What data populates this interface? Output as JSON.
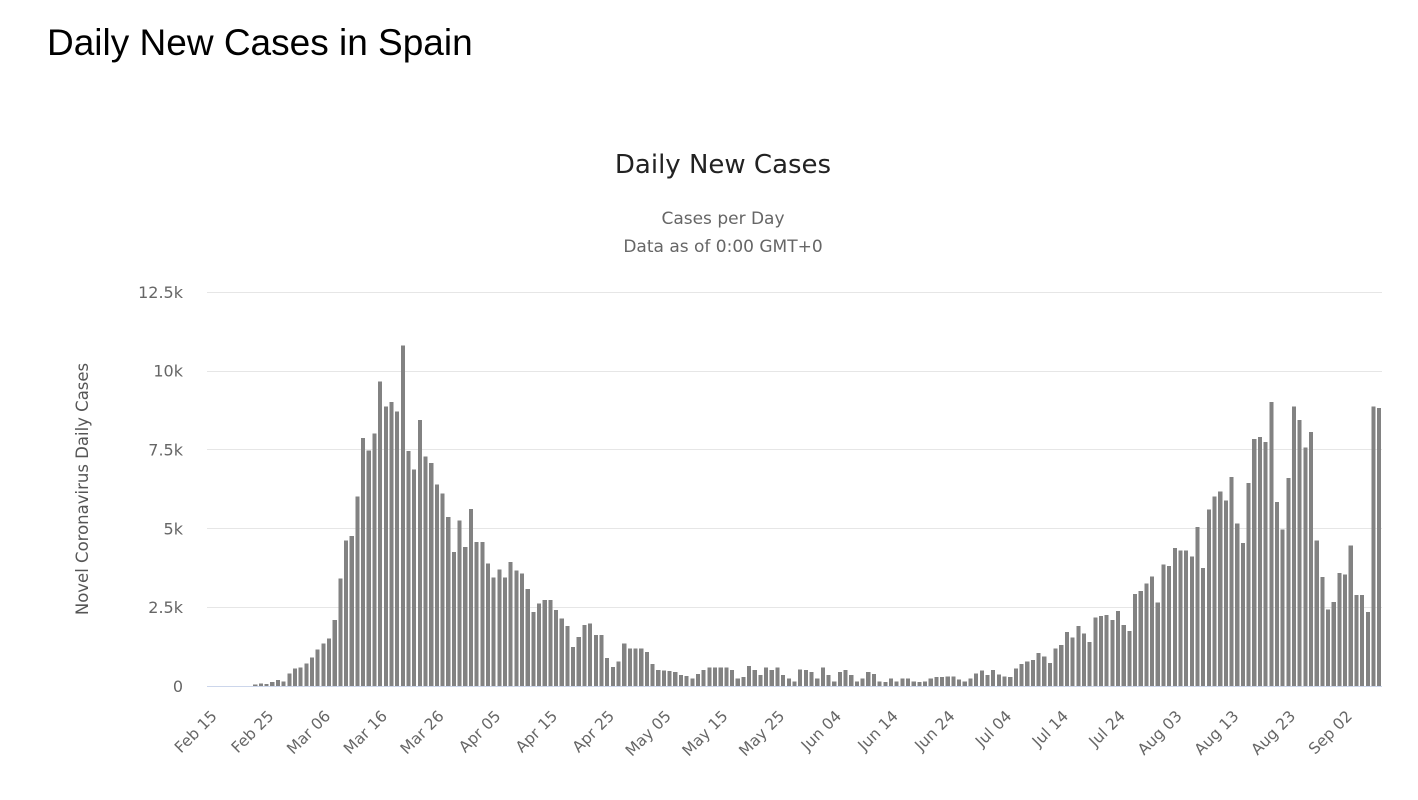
{
  "page": {
    "title": "Daily New Cases in Spain"
  },
  "chart_data": {
    "type": "bar",
    "title": "Daily New Cases",
    "subtitle": "Cases per Day",
    "subtitle2": "Data as of 0:00 GMT+0",
    "ylabel": "Novel Coronavirus Daily Cases",
    "xlabel": "",
    "ylim": [
      0,
      12500
    ],
    "grid": true,
    "legend": "none",
    "bar_color": "#828282",
    "grid_color": "#e6e6e6",
    "axis_line_color": "#ccd6eb",
    "label_color": "#666666",
    "ytick_values": [
      0,
      2500,
      5000,
      7500,
      10000,
      12500
    ],
    "ytick_labels": [
      "0",
      "2.5k",
      "5k",
      "7.5k",
      "10k",
      "12.5k"
    ],
    "xtick_every_days": 10,
    "xtick_labels": [
      "Feb 15",
      "Feb 25",
      "Mar 06",
      "Mar 16",
      "Mar 26",
      "Apr 05",
      "Apr 15",
      "Apr 25",
      "May 05",
      "May 15",
      "May 25",
      "Jun 04",
      "Jun 14",
      "Jun 24",
      "Jul 04",
      "Jul 14",
      "Jul 24",
      "Aug 03",
      "Aug 13",
      "Aug 23",
      "Sep 02"
    ],
    "x_range": [
      "Feb 15",
      "Sep 08"
    ],
    "categories": [
      "Feb 15",
      "Feb 16",
      "Feb 17",
      "Feb 18",
      "Feb 19",
      "Feb 20",
      "Feb 21",
      "Feb 22",
      "Feb 23",
      "Feb 24",
      "Feb 25",
      "Feb 26",
      "Feb 27",
      "Feb 28",
      "Feb 29",
      "Mar 01",
      "Mar 02",
      "Mar 03",
      "Mar 04",
      "Mar 05",
      "Mar 06",
      "Mar 07",
      "Mar 08",
      "Mar 09",
      "Mar 10",
      "Mar 11",
      "Mar 12",
      "Mar 13",
      "Mar 14",
      "Mar 15",
      "Mar 16",
      "Mar 17",
      "Mar 18",
      "Mar 19",
      "Mar 20",
      "Mar 21",
      "Mar 22",
      "Mar 23",
      "Mar 24",
      "Mar 25",
      "Mar 26",
      "Mar 27",
      "Mar 28",
      "Mar 29",
      "Mar 30",
      "Mar 31",
      "Apr 01",
      "Apr 02",
      "Apr 03",
      "Apr 04",
      "Apr 05",
      "Apr 06",
      "Apr 07",
      "Apr 08",
      "Apr 09",
      "Apr 10",
      "Apr 11",
      "Apr 12",
      "Apr 13",
      "Apr 14",
      "Apr 15",
      "Apr 16",
      "Apr 17",
      "Apr 18",
      "Apr 19",
      "Apr 20",
      "Apr 21",
      "Apr 22",
      "Apr 23",
      "Apr 24",
      "Apr 25",
      "Apr 26",
      "Apr 27",
      "Apr 28",
      "Apr 29",
      "Apr 30",
      "May 01",
      "May 02",
      "May 03",
      "May 04",
      "May 05",
      "May 06",
      "May 07",
      "May 08",
      "May 09",
      "May 10",
      "May 11",
      "May 12",
      "May 13",
      "May 14",
      "May 15",
      "May 16",
      "May 17",
      "May 18",
      "May 19",
      "May 20",
      "May 21",
      "May 22",
      "May 23",
      "May 24",
      "May 25",
      "May 26",
      "May 27",
      "May 28",
      "May 29",
      "May 30",
      "May 31",
      "Jun 01",
      "Jun 02",
      "Jun 03",
      "Jun 04",
      "Jun 05",
      "Jun 06",
      "Jun 07",
      "Jun 08",
      "Jun 09",
      "Jun 10",
      "Jun 11",
      "Jun 12",
      "Jun 13",
      "Jun 14",
      "Jun 15",
      "Jun 16",
      "Jun 17",
      "Jun 18",
      "Jun 19",
      "Jun 20",
      "Jun 21",
      "Jun 22",
      "Jun 23",
      "Jun 24",
      "Jun 25",
      "Jun 26",
      "Jun 27",
      "Jun 28",
      "Jun 29",
      "Jun 30",
      "Jul 01",
      "Jul 02",
      "Jul 03",
      "Jul 04",
      "Jul 05",
      "Jul 06",
      "Jul 07",
      "Jul 08",
      "Jul 09",
      "Jul 10",
      "Jul 11",
      "Jul 12",
      "Jul 13",
      "Jul 14",
      "Jul 15",
      "Jul 16",
      "Jul 17",
      "Jul 18",
      "Jul 19",
      "Jul 20",
      "Jul 21",
      "Jul 22",
      "Jul 23",
      "Jul 24",
      "Jul 25",
      "Jul 26",
      "Jul 27",
      "Jul 28",
      "Jul 29",
      "Jul 30",
      "Jul 31",
      "Aug 01",
      "Aug 02",
      "Aug 03",
      "Aug 04",
      "Aug 05",
      "Aug 06",
      "Aug 07",
      "Aug 08",
      "Aug 09",
      "Aug 10",
      "Aug 11",
      "Aug 12",
      "Aug 13",
      "Aug 14",
      "Aug 15",
      "Aug 16",
      "Aug 17",
      "Aug 18",
      "Aug 19",
      "Aug 20",
      "Aug 21",
      "Aug 22",
      "Aug 23",
      "Aug 24",
      "Aug 25",
      "Aug 26",
      "Aug 27",
      "Aug 28",
      "Aug 29",
      "Aug 30",
      "Aug 31",
      "Sep 01",
      "Sep 02",
      "Sep 03",
      "Sep 04",
      "Sep 05",
      "Sep 06",
      "Sep 07",
      "Sep 08"
    ],
    "values": [
      0,
      0,
      0,
      0,
      0,
      0,
      0,
      0,
      50,
      80,
      60,
      130,
      190,
      150,
      400,
      560,
      590,
      720,
      900,
      1160,
      1350,
      1510,
      2090,
      3410,
      4620,
      4760,
      6010,
      7870,
      7470,
      8000,
      9660,
      8860,
      9000,
      8710,
      10790,
      7450,
      6860,
      8440,
      7280,
      7070,
      6390,
      6100,
      5360,
      4250,
      5250,
      4410,
      5620,
      4570,
      4570,
      3880,
      3440,
      3700,
      3440,
      3930,
      3670,
      3570,
      3070,
      2350,
      2620,
      2720,
      2720,
      2410,
      2140,
      1900,
      1240,
      1560,
      1930,
      1980,
      1610,
      1610,
      880,
      610,
      770,
      1350,
      1190,
      1190,
      1190,
      1080,
      700,
      510,
      490,
      470,
      440,
      350,
      320,
      240,
      380,
      510,
      580,
      580,
      580,
      580,
      510,
      240,
      280,
      630,
      510,
      350,
      580,
      510,
      580,
      350,
      240,
      140,
      530,
      510,
      440,
      240,
      580,
      350,
      140,
      440,
      510,
      350,
      140,
      240,
      440,
      380,
      140,
      120,
      240,
      140,
      240,
      240,
      140,
      120,
      140,
      240,
      280,
      280,
      300,
      300,
      210,
      140,
      240,
      400,
      490,
      350,
      510,
      370,
      300,
      280,
      560,
      690,
      770,
      820,
      1050,
      930,
      730,
      1190,
      1300,
      1720,
      1540,
      1900,
      1670,
      1400,
      2170,
      2220,
      2250,
      2090,
      2380,
      1930,
      1750,
      2910,
      3020,
      3250,
      3480,
      2640,
      3860,
      3800,
      4380,
      4300,
      4300,
      4110,
      5040,
      3740,
      5590,
      6010,
      6170,
      5890,
      6620,
      5150,
      4530,
      6430,
      7840,
      7890,
      7730,
      9000,
      5830,
      4960,
      6600,
      8860,
      8440,
      7570,
      8050,
      4620,
      3460,
      2430,
      2670,
      3580,
      3530,
      4460,
      2880,
      2880,
      2350,
      8860,
      8810
    ]
  }
}
